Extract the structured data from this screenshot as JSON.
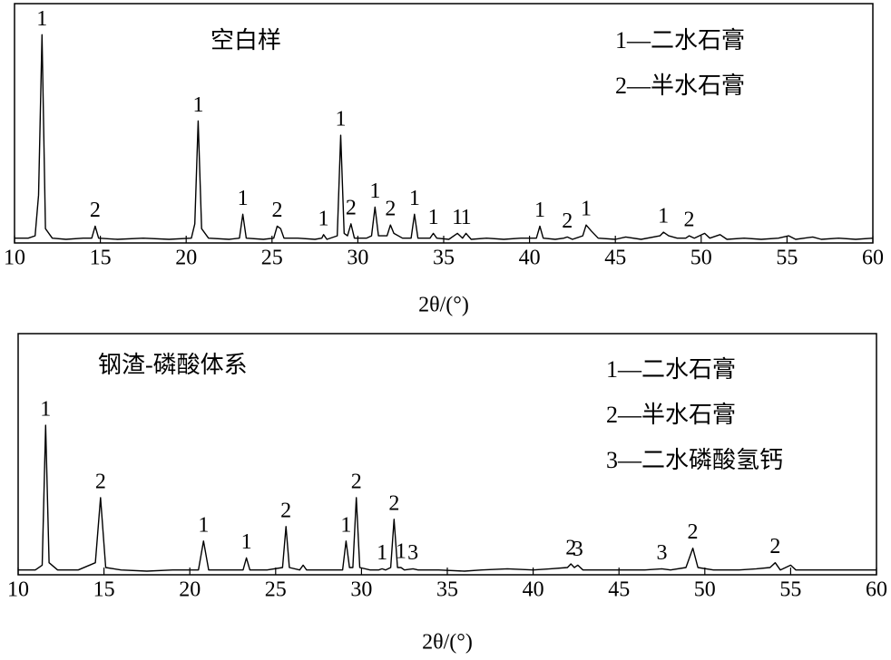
{
  "chart_data": [
    {
      "type": "line",
      "title": "空白样",
      "xlabel": "2θ/(°)",
      "annotations": [
        "1—二水石膏",
        "2—半水石膏"
      ],
      "xlim": [
        10,
        60
      ],
      "ylim": [
        0,
        100
      ],
      "xticks": [
        10,
        15,
        20,
        25,
        30,
        35,
        40,
        45,
        50,
        55,
        60
      ],
      "x": [
        10.0,
        10.8,
        11.2,
        11.4,
        11.6,
        11.8,
        12.2,
        13.0,
        14.0,
        14.5,
        14.7,
        14.9,
        16.0,
        17.5,
        19.0,
        20.3,
        20.5,
        20.7,
        20.9,
        21.3,
        22.5,
        23.1,
        23.3,
        23.5,
        24.5,
        25.1,
        25.3,
        25.5,
        25.7,
        26.5,
        27.5,
        27.9,
        28.0,
        28.2,
        28.8,
        29.0,
        29.2,
        29.4,
        29.6,
        29.8,
        30.5,
        30.8,
        31.0,
        31.2,
        31.7,
        31.9,
        32.1,
        32.6,
        33.1,
        33.3,
        33.5,
        34.2,
        34.4,
        34.6,
        35.3,
        35.8,
        36.1,
        36.3,
        36.6,
        37.5,
        38.5,
        39.5,
        40.4,
        40.6,
        40.8,
        41.5,
        42.0,
        42.2,
        42.5,
        43.1,
        43.3,
        43.6,
        44.0,
        45.0,
        45.6,
        46.5,
        47.6,
        47.8,
        48.1,
        48.6,
        49.1,
        49.3,
        49.6,
        50.2,
        50.5,
        51.1,
        51.5,
        52.5,
        53.5,
        54.5,
        55.1,
        55.5,
        56.5,
        57.0,
        58.0,
        59.0,
        60.0
      ],
      "series": [
        {
          "color": "#000000",
          "values": [
            2,
            2,
            3,
            20,
            87,
            6,
            2,
            1.5,
            2,
            2,
            7,
            2,
            1.5,
            2,
            1.5,
            2,
            8,
            51,
            6,
            2,
            1.5,
            2,
            12,
            2,
            1.5,
            2,
            7,
            6,
            2,
            2,
            1.5,
            2,
            3.5,
            1.5,
            3,
            45,
            4,
            3,
            8,
            2,
            2,
            3,
            15,
            3,
            3,
            7.5,
            4,
            2,
            2,
            12,
            2,
            2,
            4,
            2,
            1.5,
            4,
            2,
            4,
            1.5,
            2,
            1.5,
            2,
            2,
            7,
            2,
            1.5,
            2,
            2.5,
            1.5,
            3,
            7.5,
            5,
            2,
            1.5,
            2.5,
            1.5,
            3,
            4.5,
            3,
            2,
            2,
            3,
            2,
            4,
            2,
            3.5,
            1.5,
            2,
            1.5,
            2,
            3,
            1.5,
            2.5,
            1.5,
            2,
            1.5,
            2
          ]
        }
      ],
      "peak_labels": [
        {
          "label": "1",
          "x": 11.6
        },
        {
          "label": "2",
          "x": 14.7
        },
        {
          "label": "1",
          "x": 20.7
        },
        {
          "label": "1",
          "x": 23.3
        },
        {
          "label": "2",
          "x": 25.3
        },
        {
          "label": "1",
          "x": 28.0
        },
        {
          "label": "1",
          "x": 29.0
        },
        {
          "label": "2",
          "x": 29.6
        },
        {
          "label": "1",
          "x": 31.0
        },
        {
          "label": "2",
          "x": 31.9
        },
        {
          "label": "1",
          "x": 33.3
        },
        {
          "label": "1",
          "x": 34.4
        },
        {
          "label": "1",
          "x": 35.8
        },
        {
          "label": "1",
          "x": 36.3
        },
        {
          "label": "1",
          "x": 40.6
        },
        {
          "label": "2",
          "x": 42.2
        },
        {
          "label": "1",
          "x": 43.3
        },
        {
          "label": "1",
          "x": 47.8
        },
        {
          "label": "2",
          "x": 49.3
        }
      ]
    },
    {
      "type": "line",
      "title": "钢渣-磷酸体系",
      "xlabel": "2θ/(°)",
      "annotations": [
        "1—二水石膏",
        "2—半水石膏",
        "3—二水磷酸氢钙"
      ],
      "xlim": [
        10,
        60
      ],
      "ylim": [
        0,
        100
      ],
      "xticks": [
        10,
        15,
        20,
        25,
        30,
        35,
        40,
        45,
        50,
        55,
        60
      ],
      "x": [
        10,
        11,
        11.4,
        11.6,
        11.8,
        12.3,
        13.5,
        14.5,
        14.8,
        15.1,
        16,
        17.5,
        19,
        20.5,
        20.8,
        21.1,
        22.5,
        23.1,
        23.3,
        23.5,
        24.5,
        25.4,
        25.6,
        25.8,
        26.4,
        26.6,
        26.8,
        28,
        28.9,
        29.1,
        29.3,
        29.5,
        29.7,
        29.9,
        30.5,
        31.0,
        31.2,
        31.4,
        31.7,
        31.9,
        32.1,
        32.3,
        32.5,
        33.0,
        33.3,
        34.5,
        36,
        37,
        38.5,
        40,
        41,
        42,
        42.2,
        42.4,
        42.6,
        42.9,
        44,
        45.5,
        46.5,
        47.5,
        48,
        48.9,
        49.3,
        49.6,
        50.5,
        52,
        53,
        53.8,
        54.1,
        54.4,
        55,
        55.3,
        56.5,
        58,
        60
      ],
      "series": [
        {
          "color": "#000000",
          "values": [
            2,
            2,
            4,
            62,
            5,
            2,
            2,
            5,
            32,
            3,
            2,
            1.5,
            2,
            2,
            14,
            2,
            2,
            2,
            7,
            2,
            2,
            3,
            20,
            3,
            2,
            4,
            2,
            2,
            2,
            14,
            3,
            3,
            32,
            3,
            2,
            2,
            2.5,
            2,
            3,
            23,
            3,
            3,
            2,
            2.5,
            2,
            2,
            1.5,
            2,
            2.5,
            2,
            2.5,
            3,
            4.5,
            3,
            4,
            2,
            2,
            2,
            2,
            2.5,
            2,
            3,
            11,
            3,
            2,
            2,
            2.5,
            3,
            5,
            2,
            4,
            2,
            2,
            2,
            2
          ]
        }
      ],
      "peak_labels": [
        {
          "label": "1",
          "x": 11.6
        },
        {
          "label": "2",
          "x": 14.8
        },
        {
          "label": "1",
          "x": 20.8
        },
        {
          "label": "1",
          "x": 23.3
        },
        {
          "label": "2",
          "x": 25.6
        },
        {
          "label": "1",
          "x": 29.1
        },
        {
          "label": "2",
          "x": 29.7
        },
        {
          "label": "1",
          "x": 31.2
        },
        {
          "label": "2",
          "x": 31.9
        },
        {
          "label": "1",
          "x": 32.3
        },
        {
          "label": "3",
          "x": 33.0
        },
        {
          "label": "2",
          "x": 42.2
        },
        {
          "label": "3",
          "x": 42.6
        },
        {
          "label": "3",
          "x": 47.5
        },
        {
          "label": "2",
          "x": 49.3
        },
        {
          "label": "2",
          "x": 54.1
        }
      ]
    }
  ]
}
